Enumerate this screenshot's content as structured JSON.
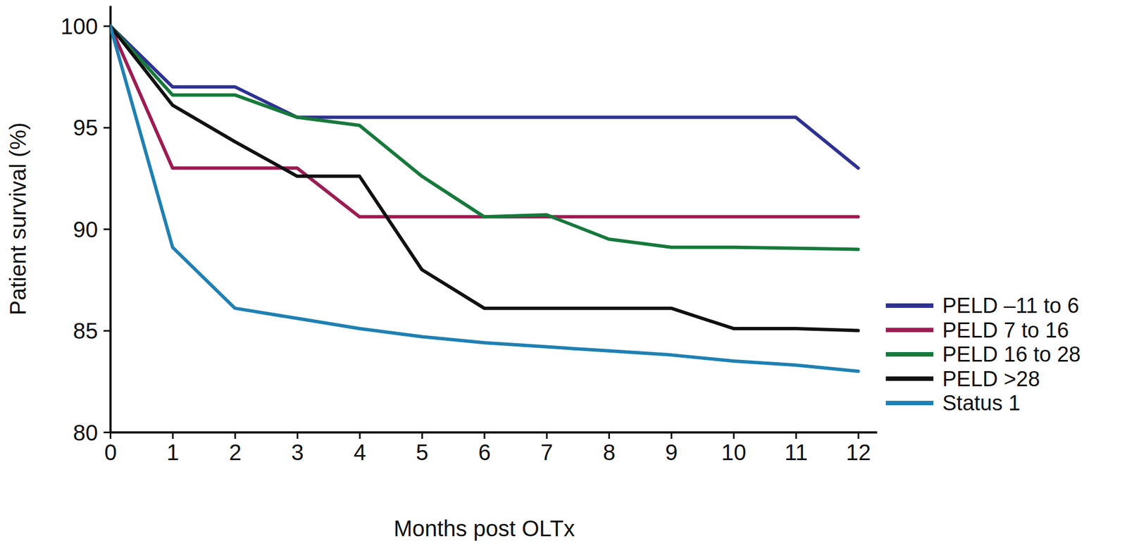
{
  "chart_data": {
    "type": "line",
    "x_label": "Months post OLTx",
    "y_label": "Patient survival (%)",
    "x": [
      0,
      1,
      2,
      3,
      4,
      5,
      6,
      7,
      8,
      9,
      10,
      11,
      12
    ],
    "xlim": [
      0,
      12.3
    ],
    "xticks": [
      0,
      1,
      2,
      3,
      4,
      5,
      6,
      7,
      8,
      9,
      10,
      11,
      12
    ],
    "ylim": [
      80,
      101
    ],
    "yticks": [
      80,
      85,
      90,
      95,
      100
    ],
    "grid": false,
    "legend": "right",
    "series": [
      {
        "name": "PELD –11 to 6",
        "color": "#2e3192",
        "values": [
          100,
          97,
          97,
          95.5,
          95.5,
          95.5,
          95.5,
          95.5,
          95.5,
          95.5,
          95.5,
          95.5,
          93
        ]
      },
      {
        "name": "PELD 7 to 16",
        "color": "#9c1c52",
        "values": [
          100,
          93,
          93,
          93,
          90.6,
          90.6,
          90.6,
          90.6,
          90.6,
          90.6,
          90.6,
          90.6,
          90.6
        ]
      },
      {
        "name": "PELD 16 to 28",
        "color": "#17793b",
        "values": [
          100,
          96.6,
          96.6,
          95.5,
          95.1,
          92.6,
          90.6,
          90.7,
          89.5,
          89.1,
          89.1,
          89.05,
          89
        ]
      },
      {
        "name": "PELD >28",
        "color": "#111111",
        "values": [
          100,
          96.1,
          94.3,
          92.6,
          92.6,
          88,
          86.1,
          86.1,
          86.1,
          86.1,
          85.1,
          85.1,
          85
        ]
      },
      {
        "name": "Status 1",
        "color": "#1f80b3",
        "values": [
          100,
          89.1,
          86.1,
          85.6,
          85.1,
          84.7,
          84.4,
          84.2,
          84,
          83.8,
          83.5,
          83.3,
          83
        ]
      }
    ]
  }
}
